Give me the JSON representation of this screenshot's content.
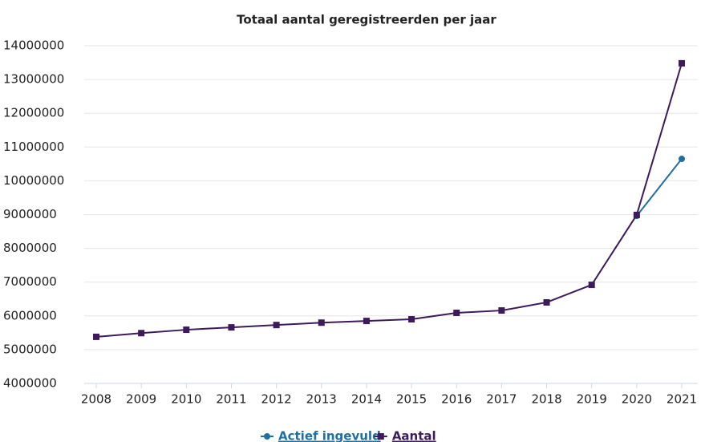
{
  "chart_data": {
    "type": "line",
    "title": "Totaal aantal geregistreerden per jaar",
    "categories": [
      "2008",
      "2009",
      "2010",
      "2011",
      "2012",
      "2013",
      "2014",
      "2015",
      "2016",
      "2017",
      "2018",
      "2019",
      "2020",
      "2021"
    ],
    "series": [
      {
        "name": "Actief ingevuld",
        "color": "#1f6f9f",
        "marker": "circle",
        "values": [
          null,
          null,
          null,
          null,
          null,
          null,
          null,
          null,
          null,
          null,
          null,
          null,
          8960000,
          10650000
        ]
      },
      {
        "name": "Aantal",
        "color": "#3d1a5b",
        "marker": "square",
        "values": [
          5380000,
          5490000,
          5590000,
          5660000,
          5730000,
          5800000,
          5850000,
          5900000,
          6090000,
          6160000,
          6400000,
          6920000,
          8990000,
          13480000
        ]
      }
    ],
    "ylim": [
      4000000,
      14000000
    ],
    "yticks": [
      4000000,
      5000000,
      6000000,
      7000000,
      8000000,
      9000000,
      10000000,
      11000000,
      12000000,
      13000000,
      14000000
    ],
    "grid": true
  }
}
